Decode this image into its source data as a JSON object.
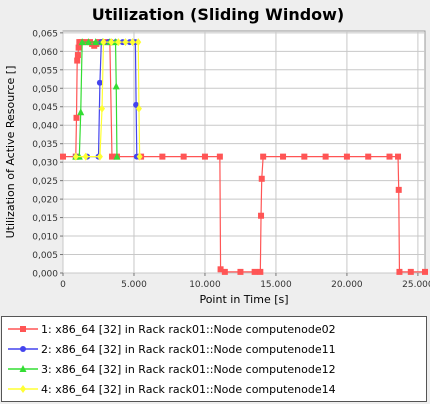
{
  "chart_data": {
    "type": "line",
    "title": "Utilization (Sliding Window)",
    "xlabel": "Point in Time [s]",
    "ylabel": "Utilization of Active Resource []",
    "xlim": [
      0,
      25500
    ],
    "ylim": [
      0,
      0.0655
    ],
    "x_ticks": [
      0,
      5000,
      10000,
      15000,
      20000,
      25000
    ],
    "x_tick_labels": [
      "0",
      "5.000",
      "10.000",
      "15.000",
      "20.000",
      "25.000"
    ],
    "y_ticks": [
      0,
      0.005,
      0.01,
      0.015,
      0.02,
      0.025,
      0.03,
      0.035,
      0.04,
      0.045,
      0.05,
      0.055,
      0.06,
      0.065
    ],
    "y_tick_labels": [
      "0,000",
      "0,005",
      "0,010",
      "0,015",
      "0,020",
      "0,025",
      "0,030",
      "0,035",
      "0,040",
      "0,045",
      "0,050",
      "0,055",
      "0,060",
      "0,065"
    ],
    "grid": true,
    "legend_position": "bottom",
    "series": [
      {
        "name": "1: x86_64 [32] in Rack rack01::Node computenode02",
        "color": "#ff5555",
        "marker": "square",
        "points": [
          [
            0,
            0.0315
          ],
          [
            900,
            0.0315
          ],
          [
            950,
            0.042
          ],
          [
            1000,
            0.0575
          ],
          [
            1050,
            0.059
          ],
          [
            1100,
            0.061
          ],
          [
            1150,
            0.0625
          ],
          [
            1300,
            0.0625
          ],
          [
            1600,
            0.0625
          ],
          [
            1900,
            0.0625
          ],
          [
            2050,
            0.062
          ],
          [
            2200,
            0.0615
          ],
          [
            2350,
            0.062
          ],
          [
            2500,
            0.0625
          ],
          [
            2900,
            0.0625
          ],
          [
            3300,
            0.0625
          ],
          [
            3450,
            0.0315
          ],
          [
            3800,
            0.0315
          ],
          [
            5500,
            0.0315
          ],
          [
            7000,
            0.0315
          ],
          [
            8500,
            0.0315
          ],
          [
            10000,
            0.0315
          ],
          [
            11050,
            0.0315
          ],
          [
            11100,
            0.001
          ],
          [
            11400,
            0.0003
          ],
          [
            12500,
            0.0003
          ],
          [
            13500,
            0.0003
          ],
          [
            13900,
            0.0003
          ],
          [
            13950,
            0.0155
          ],
          [
            14000,
            0.0255
          ],
          [
            14100,
            0.0315
          ],
          [
            15500,
            0.0315
          ],
          [
            17000,
            0.0315
          ],
          [
            18500,
            0.0315
          ],
          [
            20000,
            0.0315
          ],
          [
            21500,
            0.0315
          ],
          [
            23000,
            0.0315
          ],
          [
            23600,
            0.0315
          ],
          [
            23650,
            0.0225
          ],
          [
            23700,
            0.0003
          ],
          [
            24500,
            0.0003
          ],
          [
            25500,
            0.0003
          ]
        ]
      },
      {
        "name": "2: x86_64 [32] in Rack rack01::Node computenode11",
        "color": "#4444ee",
        "marker": "circle",
        "points": [
          [
            900,
            0.0315
          ],
          [
            1700,
            0.0315
          ],
          [
            2500,
            0.0315
          ],
          [
            2600,
            0.0515
          ],
          [
            2700,
            0.0625
          ],
          [
            3200,
            0.0625
          ],
          [
            3700,
            0.0625
          ],
          [
            4200,
            0.0625
          ],
          [
            4700,
            0.0625
          ],
          [
            5100,
            0.0625
          ],
          [
            5150,
            0.0455
          ],
          [
            5200,
            0.0315
          ]
        ]
      },
      {
        "name": "3: x86_64 [32] in Rack rack01::Node computenode12",
        "color": "#33dd33",
        "marker": "triangle",
        "points": [
          [
            900,
            0.0315
          ],
          [
            1150,
            0.0315
          ],
          [
            1250,
            0.0435
          ],
          [
            1350,
            0.0625
          ],
          [
            1800,
            0.0625
          ],
          [
            2300,
            0.0625
          ],
          [
            2800,
            0.0625
          ],
          [
            3300,
            0.0625
          ],
          [
            3700,
            0.0625
          ],
          [
            3750,
            0.0505
          ],
          [
            3800,
            0.0315
          ]
        ]
      },
      {
        "name": "4: x86_64 [32] in Rack rack01::Node computenode14",
        "color": "#ffff33",
        "marker": "diamond",
        "points": [
          [
            900,
            0.0315
          ],
          [
            1600,
            0.0315
          ],
          [
            2600,
            0.0315
          ],
          [
            2750,
            0.0445
          ],
          [
            2850,
            0.0625
          ],
          [
            3400,
            0.0625
          ],
          [
            3900,
            0.0625
          ],
          [
            4400,
            0.0625
          ],
          [
            4900,
            0.0625
          ],
          [
            5300,
            0.0625
          ],
          [
            5350,
            0.0445
          ],
          [
            5400,
            0.0315
          ]
        ]
      }
    ]
  }
}
